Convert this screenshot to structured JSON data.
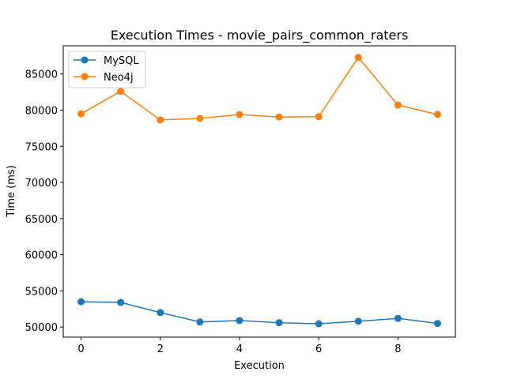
{
  "chart_data": {
    "type": "line",
    "title": "Execution Times - movie_pairs_common_raters",
    "xlabel": "Execution",
    "ylabel": "Time (ms)",
    "x": [
      0,
      1,
      2,
      3,
      4,
      5,
      6,
      7,
      8,
      9
    ],
    "xlim": [
      -0.45,
      9.45
    ],
    "ylim": [
      48600,
      88900
    ],
    "xticks": [
      0,
      2,
      4,
      6,
      8
    ],
    "yticks": [
      50000,
      55000,
      60000,
      65000,
      70000,
      75000,
      80000,
      85000
    ],
    "grid": false,
    "legend_position": "top-left",
    "series": [
      {
        "name": "MySQL",
        "color": "#1f77b4",
        "values": [
          53500,
          53400,
          52000,
          50700,
          50900,
          50600,
          50450,
          50800,
          51200,
          50500
        ]
      },
      {
        "name": "Neo4j",
        "color": "#ff7f0e",
        "values": [
          79500,
          82600,
          78650,
          78850,
          79400,
          79050,
          79100,
          87300,
          80700,
          79400
        ]
      }
    ]
  }
}
